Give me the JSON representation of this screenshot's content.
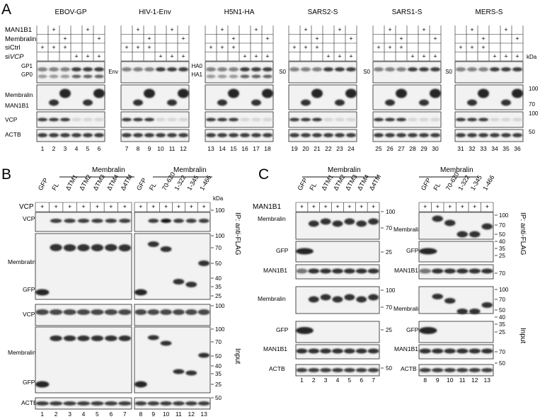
{
  "panel_a": {
    "letter": "A",
    "viruses": [
      {
        "name": "EBOV-GP",
        "s1": [
          "GP1",
          "GP0"
        ],
        "lanes": [
          "1",
          "2",
          "3",
          "4",
          "5",
          "6"
        ]
      },
      {
        "name": "HIV-1-Env",
        "s1": [
          "Env"
        ],
        "lanes": [
          "7",
          "8",
          "9",
          "10",
          "11",
          "12"
        ]
      },
      {
        "name": "H5N1-HA",
        "s1": [
          "HA0",
          "HA1"
        ],
        "lanes": [
          "13",
          "14",
          "15",
          "16",
          "17",
          "18"
        ]
      },
      {
        "name": "SARS2-S",
        "s1": [
          "S0"
        ],
        "lanes": [
          "19",
          "20",
          "21",
          "22",
          "23",
          "24"
        ]
      },
      {
        "name": "SARS1-S",
        "s1": [
          "S0"
        ],
        "lanes": [
          "25",
          "26",
          "27",
          "28",
          "29",
          "30"
        ]
      },
      {
        "name": "MERS-S",
        "s1": [
          "S0"
        ],
        "lanes": [
          "31",
          "32",
          "33",
          "34",
          "35",
          "36"
        ]
      }
    ],
    "row_labels": [
      "MAN1B1",
      "Membralin",
      "siCtrl",
      "siVCP"
    ],
    "row_label_italic_part": "VCP",
    "plus_pattern": [
      [
        0,
        1,
        0,
        0,
        1,
        0
      ],
      [
        0,
        0,
        1,
        0,
        0,
        1
      ],
      [
        1,
        1,
        1,
        0,
        0,
        0
      ],
      [
        0,
        0,
        0,
        1,
        1,
        1
      ]
    ],
    "blot_labels": {
      "membralin": "Membralin",
      "man1b1": "MAN1B1",
      "vcp": "VCP",
      "actb": "ACTB"
    },
    "kda": "kDa",
    "markers": [
      "100",
      "70",
      "100",
      "50"
    ]
  },
  "panel_b": {
    "letter": "B",
    "header": "Membralin",
    "left_constructs": [
      "GFP",
      "FL",
      "ΔTM1",
      "ΔTM2",
      "ΔTM3",
      "ΔTM4",
      "Δ4TM"
    ],
    "right_constructs": [
      "GFP",
      "FL",
      "70-620",
      "1-322",
      "1-345",
      "1-466"
    ],
    "cotrans": "VCP",
    "plus": "+",
    "left_lanes": [
      "1",
      "2",
      "3",
      "4",
      "5",
      "6",
      "7"
    ],
    "right_lanes": [
      "8",
      "9",
      "10",
      "11",
      "12",
      "13"
    ],
    "blot_labels": {
      "vcp": "VCP",
      "membralin": "Membralin",
      "gfp": "GFP",
      "actb": "ACTB"
    },
    "ip": "IP: anti-FLAG",
    "input": "Input",
    "kda": "kDa",
    "markers": [
      "100",
      "100",
      "70",
      "50",
      "40",
      "35",
      "25",
      "100",
      "100",
      "70",
      "50",
      "40",
      "35",
      "25",
      "50"
    ]
  },
  "panel_c": {
    "letter": "C",
    "header": "Membralin",
    "left_constructs": [
      "GFP",
      "FL",
      "ΔTM1",
      "ΔTM2",
      "ΔTM3",
      "ΔTM4",
      "Δ4TM"
    ],
    "right_constructs": [
      "GFP",
      "FL",
      "70-620",
      "1-322",
      "1-345",
      "1-466"
    ],
    "cotrans": "MAN1B1",
    "plus": "+",
    "left_lanes": [
      "1",
      "2",
      "3",
      "4",
      "5",
      "6",
      "7"
    ],
    "right_lanes": [
      "8",
      "9",
      "10",
      "11",
      "12",
      "13"
    ],
    "blot_labels": {
      "membralin": "Membralin",
      "gfp": "GFP",
      "man1b1": "MAN1B1",
      "actb": "ACTB"
    },
    "ip": "IP: anti-FLAG",
    "input": "Input",
    "markers_left": [
      "100",
      "70",
      "25",
      "100",
      "70",
      "25",
      "50"
    ],
    "markers_right": [
      "100",
      "70",
      "50",
      "40",
      "35",
      "25",
      "70",
      "100",
      "70",
      "50",
      "40",
      "35",
      "25",
      "70",
      "50"
    ]
  }
}
